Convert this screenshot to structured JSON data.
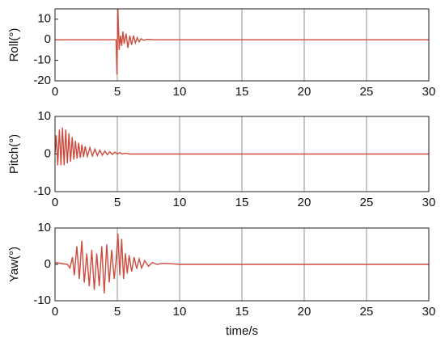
{
  "chart_data": [
    {
      "type": "line",
      "ylabel": "Roll(°)",
      "color": "#cd4a3c",
      "x": [
        0,
        4.9,
        4.97,
        5.05,
        5.15,
        5.25,
        5.35,
        5.45,
        5.55,
        5.7,
        5.85,
        6.0,
        6.15,
        6.3,
        6.45,
        6.6,
        6.75,
        6.9,
        7.1,
        7.4,
        8,
        30
      ],
      "values": [
        0,
        0,
        -17,
        15,
        -5,
        2,
        -3,
        4,
        -2,
        3,
        -4,
        2,
        -2.5,
        2,
        -1.5,
        1,
        -1,
        0.5,
        -0.3,
        0.2,
        0,
        0
      ],
      "xlim": [
        0,
        30
      ],
      "xticks": [
        0,
        5,
        10,
        15,
        20,
        25,
        30
      ],
      "ylim": [
        -20,
        15
      ],
      "yticks": [
        -20,
        -10,
        0,
        10
      ],
      "grid": true
    },
    {
      "type": "line",
      "ylabel": "Pitch(°)",
      "color": "#cd4a3c",
      "x": [
        0,
        0.1,
        0.22,
        0.35,
        0.48,
        0.6,
        0.73,
        0.86,
        0.99,
        1.12,
        1.25,
        1.38,
        1.51,
        1.64,
        1.77,
        1.9,
        2.03,
        2.16,
        2.29,
        2.42,
        2.6,
        2.8,
        3.0,
        3.2,
        3.4,
        3.6,
        3.8,
        4.0,
        4.2,
        4.4,
        4.6,
        4.8,
        5.0,
        5.2,
        5.4,
        5.6,
        6,
        30
      ],
      "values": [
        0,
        5,
        -3,
        6.5,
        -3,
        7,
        -3,
        6.5,
        -2.5,
        5.5,
        -2,
        4.5,
        -1.5,
        3.5,
        -1.2,
        3,
        -1,
        2.5,
        -0.8,
        2,
        -0.6,
        1.7,
        -0.5,
        1.3,
        -0.4,
        1,
        -0.3,
        0.8,
        -0.2,
        0.6,
        -0.1,
        0.5,
        0,
        0.4,
        0,
        0.2,
        0,
        0
      ],
      "xlim": [
        0,
        30
      ],
      "xticks": [
        0,
        5,
        10,
        15,
        20,
        25,
        30
      ],
      "ylim": [
        -10,
        10
      ],
      "yticks": [
        -10,
        0,
        10
      ],
      "grid": true
    },
    {
      "type": "line",
      "ylabel": "Yaw(°)",
      "xlabel": "time/s",
      "color": "#cd4a3c",
      "x": [
        0,
        1,
        1.2,
        1.4,
        1.55,
        1.75,
        1.95,
        2.15,
        2.35,
        2.55,
        2.75,
        2.95,
        3.15,
        3.35,
        3.55,
        3.75,
        3.95,
        4.15,
        4.35,
        4.55,
        4.75,
        4.9,
        5.05,
        5.2,
        5.35,
        5.5,
        5.65,
        5.8,
        5.95,
        6.15,
        6.35,
        6.55,
        6.75,
        6.95,
        7.2,
        7.5,
        7.8,
        8.2,
        8.6,
        9.2,
        10,
        30
      ],
      "values": [
        0.5,
        0,
        -1,
        2,
        -3,
        5,
        -4,
        6.5,
        -5,
        3,
        -6,
        4,
        -7,
        3,
        -6,
        5,
        -8,
        5.5,
        -5,
        4,
        -4,
        1,
        8.5,
        -3,
        7,
        -4,
        3,
        -2.5,
        2.5,
        -2,
        2,
        -1.2,
        1.5,
        -1,
        1,
        -0.5,
        0.5,
        0,
        0.3,
        0.2,
        0,
        0
      ],
      "xlim": [
        0,
        30
      ],
      "xticks": [
        0,
        5,
        10,
        15,
        20,
        25,
        30
      ],
      "ylim": [
        -10,
        10
      ],
      "yticks": [
        -10,
        0,
        10
      ],
      "grid": true
    }
  ]
}
